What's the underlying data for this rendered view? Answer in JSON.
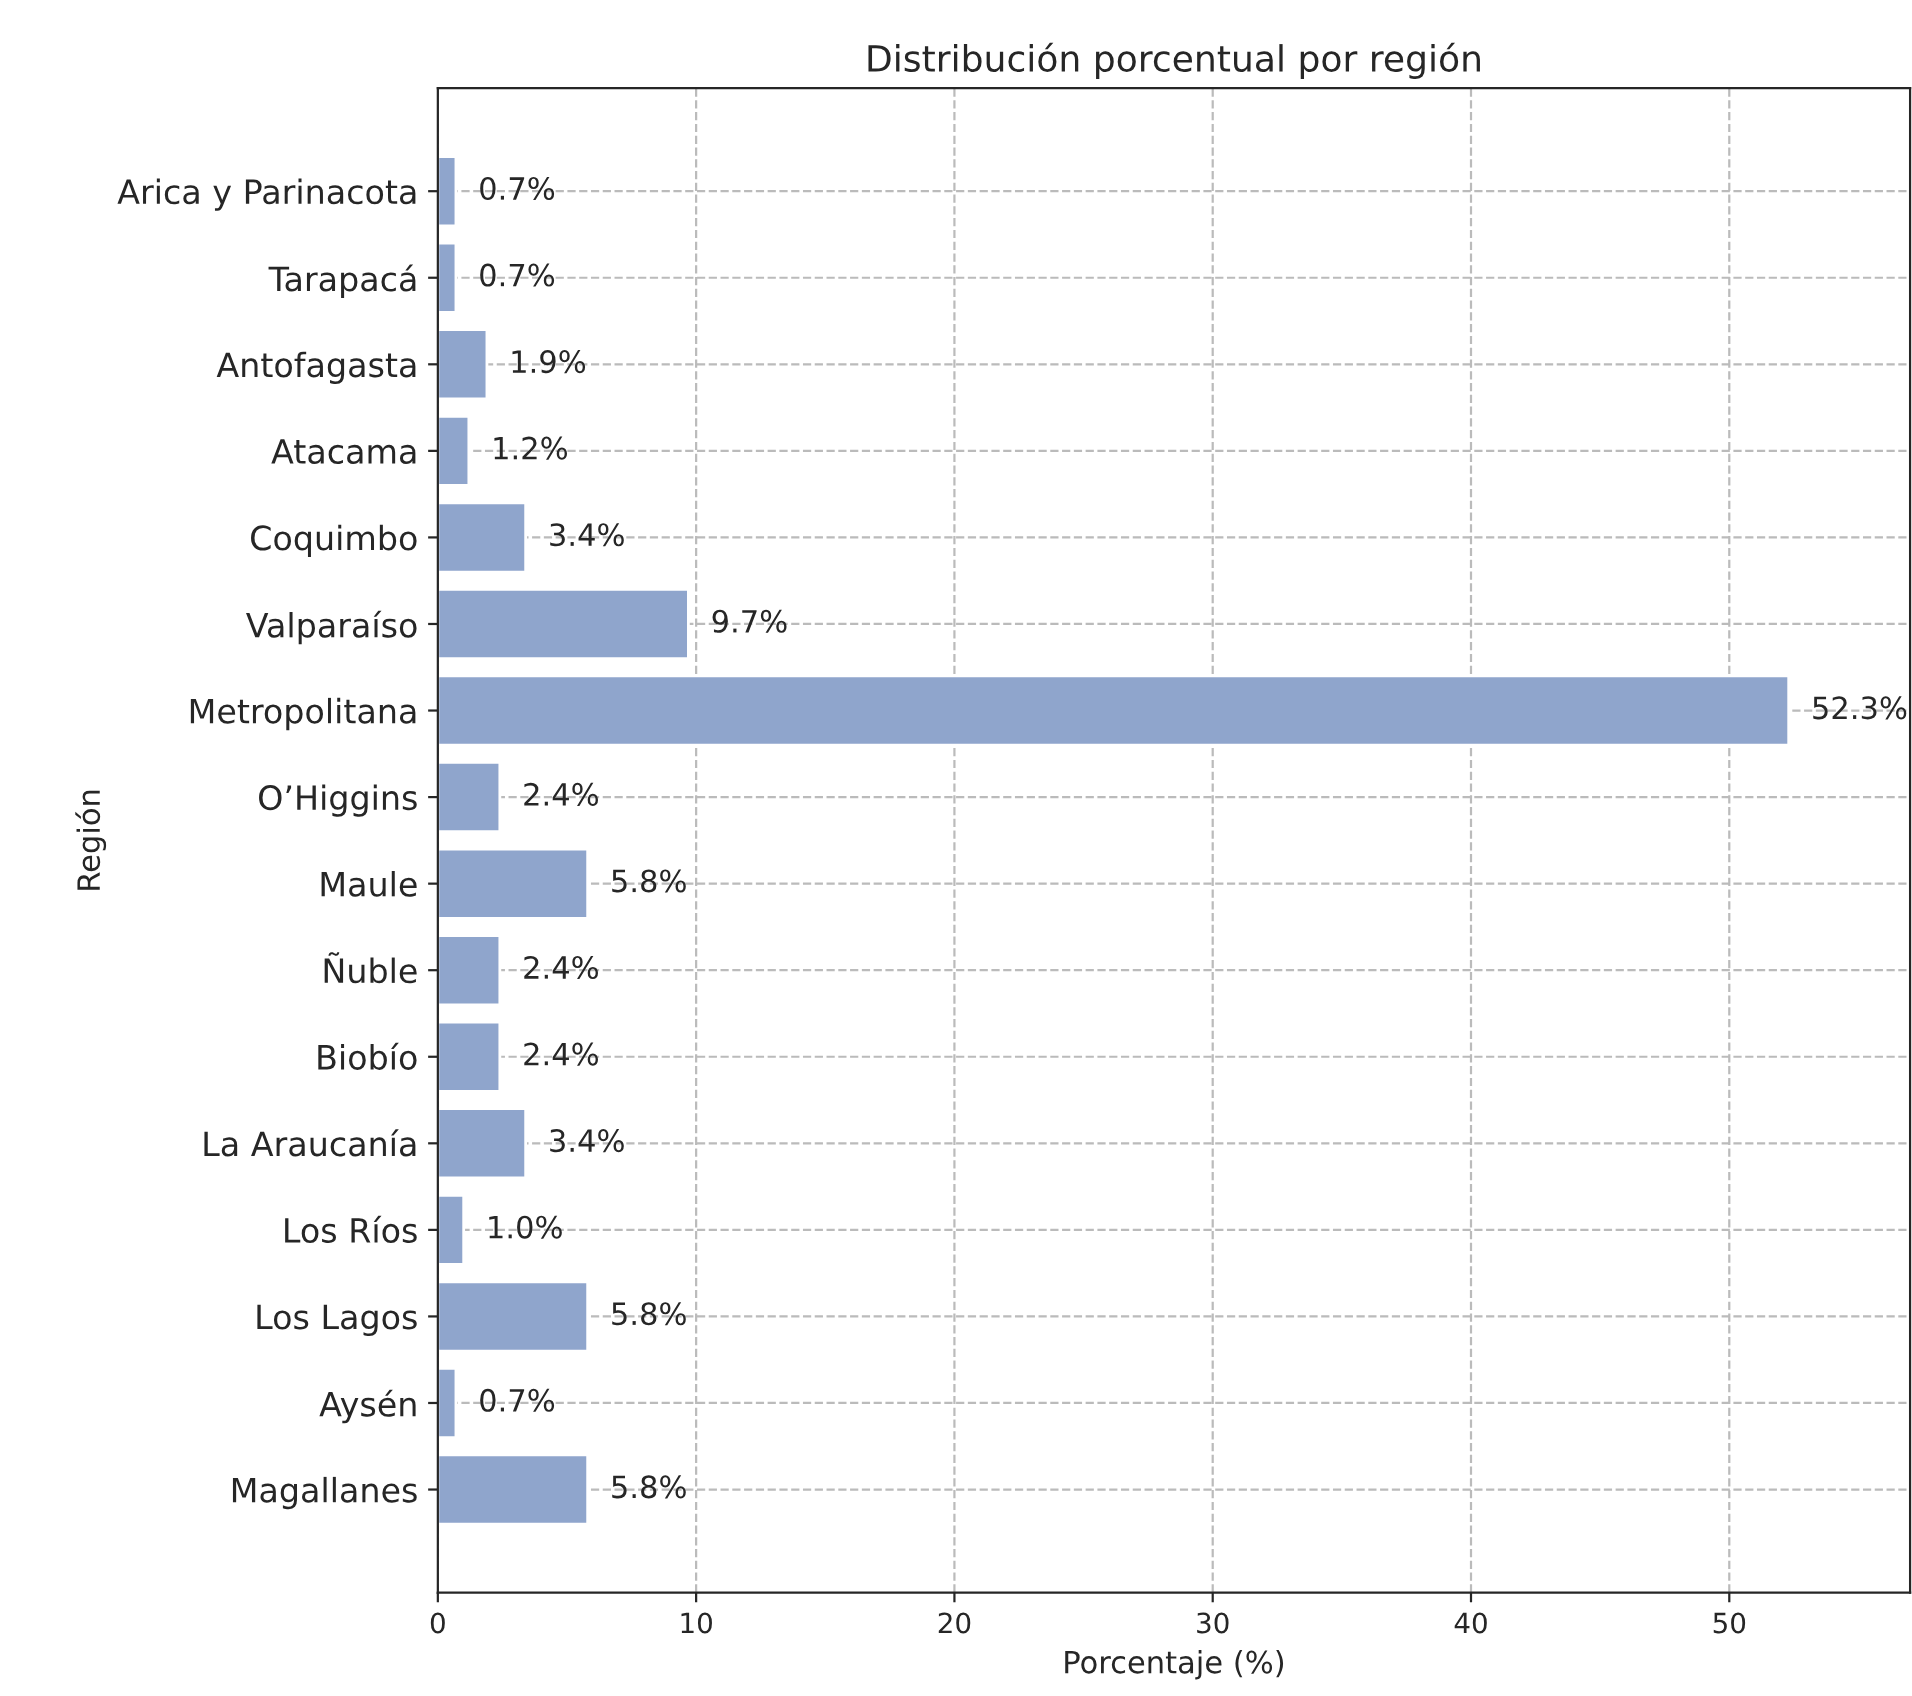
{
  "chart_data": {
    "type": "bar",
    "orientation": "horizontal",
    "title": "Distribución porcentual por región",
    "xlabel": "Porcentaje (%)",
    "ylabel": "Región",
    "categories": [
      "Arica y Parinacota",
      "Tarapacá",
      "Antofagasta",
      "Atacama",
      "Coquimbo",
      "Valparaíso",
      "Metropolitana",
      "O’Higgins",
      "Maule",
      "Ñuble",
      "Biobío",
      "La Araucanía",
      "Los Ríos",
      "Los Lagos",
      "Aysén",
      "Magallanes"
    ],
    "values": [
      0.7,
      0.7,
      1.9,
      1.2,
      3.4,
      9.7,
      52.3,
      2.4,
      5.8,
      2.4,
      2.4,
      3.4,
      1.0,
      5.8,
      0.7,
      5.8
    ],
    "value_labels": [
      "0.7%",
      "0.7%",
      "1.9%",
      "1.2%",
      "3.4%",
      "9.7%",
      "52.3%",
      "2.4%",
      "5.8%",
      "2.4%",
      "2.4%",
      "3.4%",
      "1.0%",
      "5.8%",
      "0.7%",
      "5.8%"
    ],
    "color": "#8fa5cc",
    "xlim": [
      0,
      57
    ],
    "xticks": [
      0,
      10,
      20,
      30,
      40,
      50
    ],
    "grid": true,
    "line_style": "dashed"
  }
}
